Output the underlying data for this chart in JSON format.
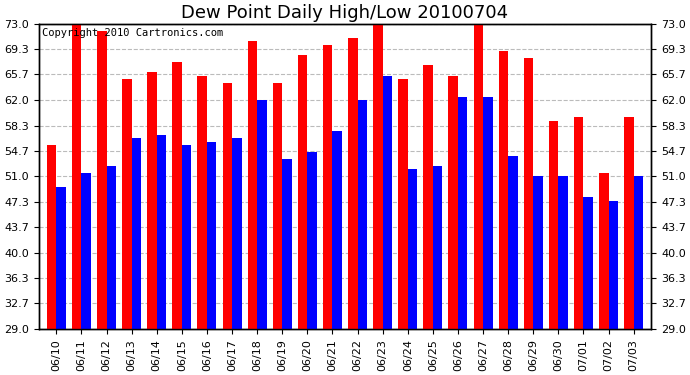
{
  "title": "Dew Point Daily High/Low 20100704",
  "copyright": "Copyright 2010 Cartronics.com",
  "dates": [
    "06/10",
    "06/11",
    "06/12",
    "06/13",
    "06/14",
    "06/15",
    "06/16",
    "06/17",
    "06/18",
    "06/19",
    "06/20",
    "06/21",
    "06/22",
    "06/23",
    "06/24",
    "06/25",
    "06/26",
    "06/27",
    "06/28",
    "06/29",
    "06/30",
    "07/01",
    "07/02",
    "07/03"
  ],
  "highs": [
    55.5,
    73.0,
    72.0,
    65.0,
    66.0,
    67.5,
    65.5,
    64.5,
    70.5,
    64.5,
    68.5,
    70.0,
    71.0,
    73.5,
    65.0,
    67.0,
    65.5,
    74.0,
    69.0,
    68.0,
    59.0,
    59.5,
    51.5,
    59.5
  ],
  "lows": [
    49.5,
    51.5,
    52.5,
    56.5,
    57.0,
    55.5,
    56.0,
    56.5,
    62.0,
    53.5,
    54.5,
    57.5,
    62.0,
    65.5,
    52.0,
    52.5,
    62.5,
    62.5,
    54.0,
    51.0,
    51.0,
    48.0,
    47.5,
    51.0
  ],
  "high_color": "#ff0000",
  "low_color": "#0000ff",
  "bg_color": "#ffffff",
  "plot_bg_color": "#ffffff",
  "grid_color": "#bbbbbb",
  "ymin": 29.0,
  "ymax": 73.0,
  "yticks": [
    29.0,
    32.7,
    36.3,
    40.0,
    43.7,
    47.3,
    51.0,
    54.7,
    58.3,
    62.0,
    65.7,
    69.3,
    73.0
  ],
  "title_fontsize": 13,
  "copyright_fontsize": 7.5,
  "tick_fontsize": 8,
  "bar_width": 0.38
}
